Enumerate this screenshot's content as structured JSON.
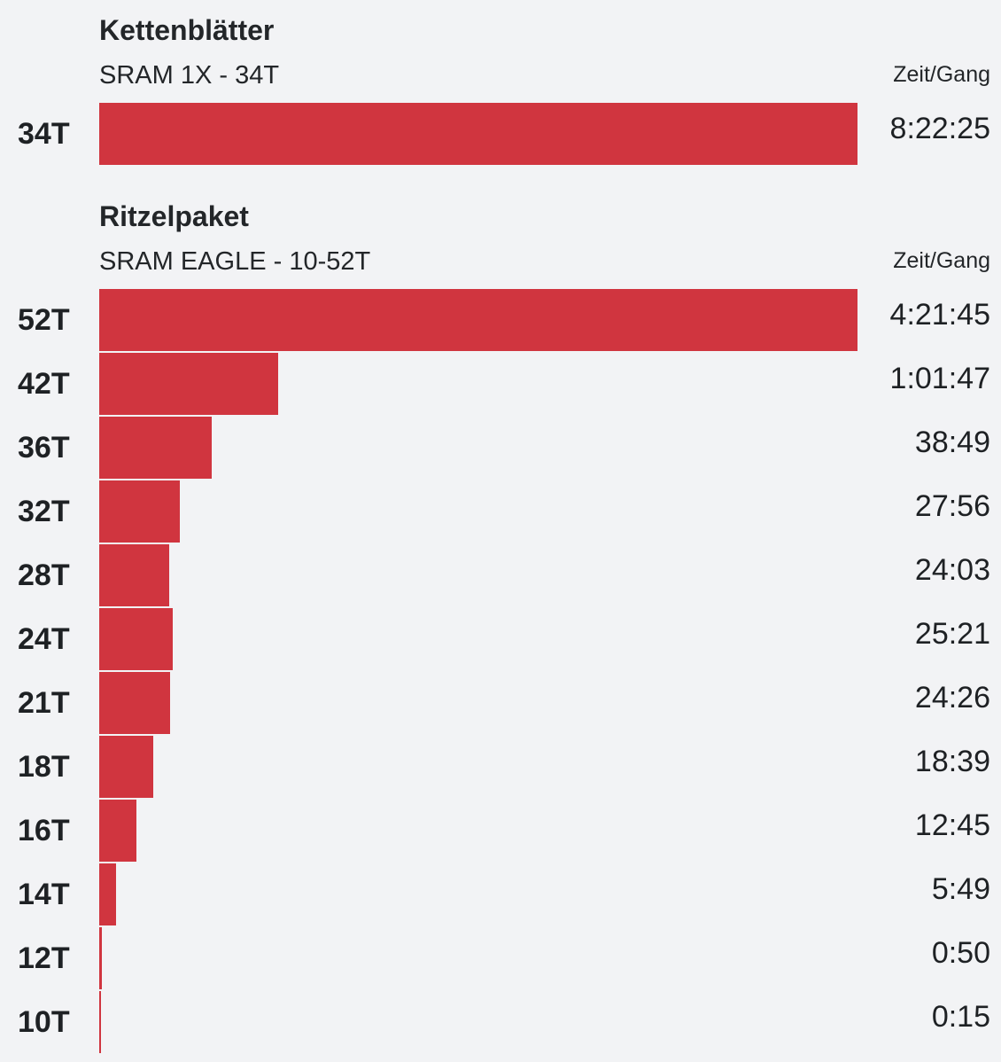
{
  "chart_data": [
    {
      "type": "bar",
      "orientation": "horizontal",
      "title": "Kettenblätter",
      "subtitle": "SRAM 1X - 34T",
      "value_header": "Zeit/Gang",
      "categories": [
        "34T"
      ],
      "labels": [
        "8:22:25"
      ],
      "values": [
        30145
      ],
      "value_unit": "s",
      "bar_color": "#d0353f"
    },
    {
      "type": "bar",
      "orientation": "horizontal",
      "title": "Ritzelpaket",
      "subtitle": "SRAM EAGLE - 10-52T",
      "value_header": "Zeit/Gang",
      "categories": [
        "52T",
        "42T",
        "36T",
        "32T",
        "28T",
        "24T",
        "21T",
        "18T",
        "16T",
        "14T",
        "12T",
        "10T"
      ],
      "labels": [
        "4:21:45",
        "1:01:47",
        "38:49",
        "27:56",
        "24:03",
        "25:21",
        "24:26",
        "18:39",
        "12:45",
        "5:49",
        "0:50",
        "0:15"
      ],
      "values": [
        15705,
        3707,
        2329,
        1676,
        1443,
        1521,
        1466,
        1119,
        765,
        349,
        50,
        15
      ],
      "value_unit": "s",
      "bar_color": "#d0353f"
    }
  ]
}
